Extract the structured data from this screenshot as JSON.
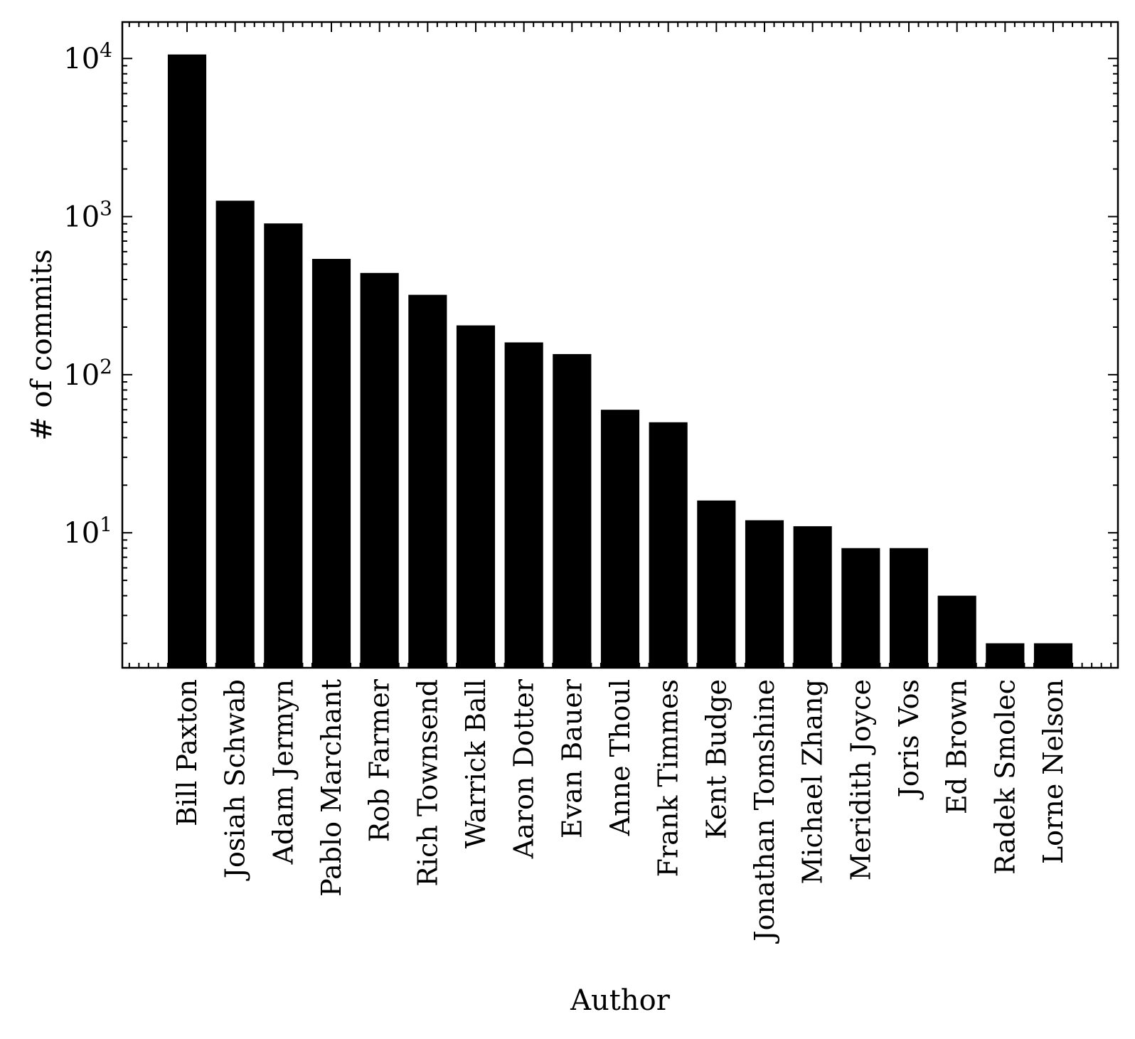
{
  "chart_data": {
    "type": "bar",
    "xlabel": "Author",
    "ylabel": "# of commits",
    "yscale": "log",
    "ylim": [
      1.4,
      17000
    ],
    "grid": false,
    "bar_color": "#000000",
    "categories": [
      "Bill Paxton",
      "Josiah Schwab",
      "Adam Jermyn",
      "Pablo Marchant",
      "Rob Farmer",
      "Rich Townsend",
      "Warrick Ball",
      "Aaron Dotter",
      "Evan Bauer",
      "Anne Thoul",
      "Frank Timmes",
      "Kent Budge",
      "Jonathan Tomshine",
      "Michael Zhang",
      "Meridith Joyce",
      "Joris Vos",
      "Ed Brown",
      "Radek Smolec",
      "Lorne Nelson"
    ],
    "values": [
      10600,
      1260,
      905,
      540,
      440,
      320,
      205,
      160,
      135,
      60,
      50,
      16,
      12,
      11,
      8,
      8,
      4,
      2,
      2
    ],
    "yticks": [
      {
        "value": 10,
        "base": "10",
        "exp": "1"
      },
      {
        "value": 100,
        "base": "10",
        "exp": "2"
      },
      {
        "value": 1000,
        "base": "10",
        "exp": "3"
      },
      {
        "value": 10000,
        "base": "10",
        "exp": "4"
      }
    ]
  }
}
